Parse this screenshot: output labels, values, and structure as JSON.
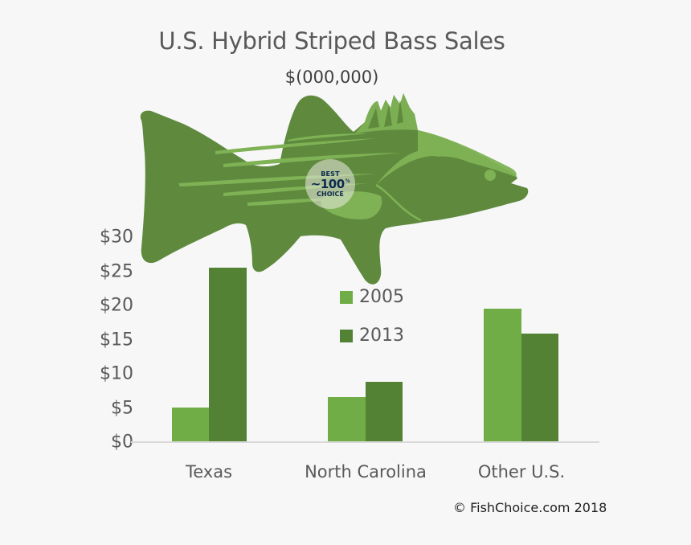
{
  "title": "U.S. Hybrid Striped Bass Sales",
  "subtitle": "$(000,000)",
  "badge": {
    "line1": "BEST",
    "line2": "~100",
    "line2_suffix": "%",
    "line3": "CHOICE"
  },
  "copyright": "© FishChoice.com 2018",
  "colors": {
    "series_2005": "#70ad47",
    "series_2013": "#548235",
    "fish_dark": "#5f8a3e",
    "fish_light": "#7fb255",
    "background": "#f7f7f7"
  },
  "y_axis": {
    "ticks": [
      "$0",
      "$5",
      "$10",
      "$15",
      "$20",
      "$25",
      "$30"
    ]
  },
  "legend": [
    {
      "label": "2005"
    },
    {
      "label": "2013"
    }
  ],
  "x_axis": {
    "labels": [
      "Texas",
      "North Carolina",
      "Other U.S."
    ]
  },
  "chart_data": {
    "type": "bar",
    "title": "U.S. Hybrid Striped Bass Sales",
    "subtitle": "$(000,000)",
    "categories": [
      "Texas",
      "North Carolina",
      "Other U.S."
    ],
    "series": [
      {
        "name": "2005",
        "values": [
          5,
          6.6,
          19.5
        ],
        "color": "#70ad47"
      },
      {
        "name": "2013",
        "values": [
          25.5,
          8.8,
          15.9
        ],
        "color": "#548235"
      }
    ],
    "xlabel": "",
    "ylabel": "",
    "ylim": [
      0,
      30
    ],
    "ytick_step": 5,
    "ytick_format": "$",
    "grid": false,
    "legend_position": "inside-center-top"
  }
}
